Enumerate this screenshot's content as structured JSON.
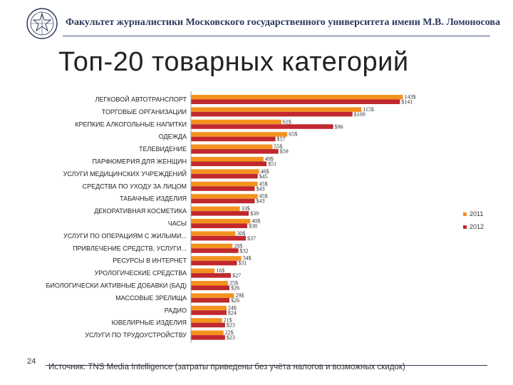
{
  "header": {
    "faculty": "Факультет журналистики Московского государственного университета имени М.В. Ломоносова"
  },
  "title": "Топ-20 товарных категорий",
  "footer": {
    "page_number": "24",
    "source": "Источник: TNS Media Intelligence (затраты приведены без учёта налогов и возможных скидок)"
  },
  "chart_data": {
    "type": "bar",
    "orientation": "horizontal",
    "categories": [
      "ЛЕГКОВОЙ АВТОТРАНСПОРТ",
      "ТОРГОВЫЕ ОРГАНИЗАЦИИ",
      "КРЕПКИЕ АЛКОГОЛЬНЫЕ НАПИТКИ",
      "ОДЕЖДА",
      "ТЕЛЕВИДЕНИЕ",
      "ПАРФЮМЕРИЯ ДЛЯ ЖЕНЩИН",
      "УСЛУГИ МЕДИЦИНСКИХ УЧРЕЖДЕНИЙ",
      "СРЕДСТВА ПО УХОДУ ЗА ЛИЦОМ",
      "ТАБАЧНЫЕ ИЗДЕЛИЯ",
      "ДЕКОРАТИВНАЯ КОСМЕТИКА",
      "ЧАСЫ",
      "УСЛУГИ ПО ОПЕРАЦИЯМ С ЖИЛЫМИ...",
      "ПРИВЛЕЧЕНИЕ СРЕДСТВ, УСЛУГИ...",
      "РЕСУРСЫ В ИНТЕРНЕТ",
      "УРОЛОГИЧЕСКИЕ СРЕДСТВА",
      "БИОЛОГИЧЕСКИ АКТИВНЫЕ ДОБАВКИ (БАД)",
      "МАССОВЫЕ ЗРЕЛИЩА",
      "РАДИО",
      "ЮВЕЛИРНЫЕ ИЗДЕЛИЯ",
      "УСЛУГИ ПО ТРУДОУСТРОЙСТВУ"
    ],
    "series": [
      {
        "name": "2011",
        "color": "#f4921f",
        "values": [
          143,
          115,
          61,
          65,
          55,
          49,
          46,
          45,
          45,
          33,
          40,
          30,
          28,
          34,
          16,
          25,
          29,
          24,
          21,
          22
        ],
        "labels": [
          "143$",
          "115$",
          "61$",
          "65$",
          "55$",
          "49$",
          "46$",
          "45$",
          "45$",
          "33$",
          "40$",
          "30$",
          "28$",
          "34$",
          "16$",
          "25$",
          "29$",
          "24$",
          "21$",
          "22$"
        ]
      },
      {
        "name": "2012",
        "color": "#c0282e",
        "values": [
          141,
          109,
          96,
          57,
          59,
          51,
          45,
          43,
          43,
          39,
          38,
          37,
          32,
          31,
          27,
          26,
          26,
          24,
          23,
          23
        ],
        "labels": [
          "$141",
          "$109",
          "$96",
          "$57",
          "$59",
          "$51",
          "$45",
          "$43",
          "$43",
          "$39",
          "$38",
          "$37",
          "$32",
          "$31",
          "$27",
          "$26",
          "$26",
          "$24",
          "$23",
          "$23"
        ]
      }
    ],
    "grid": false,
    "legend": "right"
  },
  "colors": {
    "axis": "#a0a0a0",
    "label_text": "#222222",
    "header_text": "#2a3a5c"
  },
  "icons": {
    "logo": "msu-emblem-icon"
  }
}
